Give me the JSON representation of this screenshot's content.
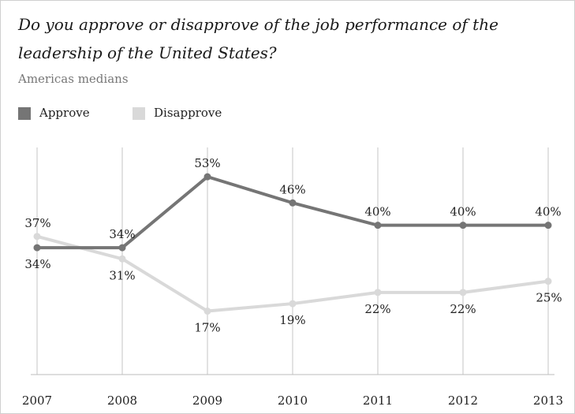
{
  "chart_data": {
    "type": "line",
    "title": "Do you approve or disapprove of the job performance of the leadership of the United States?",
    "subtitle": "Americas medians",
    "categories": [
      "2007",
      "2008",
      "2009",
      "2010",
      "2011",
      "2012",
      "2013"
    ],
    "series": [
      {
        "name": "Approve",
        "values": [
          34,
          34,
          53,
          46,
          40,
          40,
          40
        ],
        "labels": [
          "34%",
          "34%",
          "53%",
          "46%",
          "40%",
          "40%",
          "40%"
        ],
        "color": "#757575"
      },
      {
        "name": "Disapprove",
        "values": [
          37,
          31,
          17,
          19,
          22,
          22,
          25
        ],
        "labels": [
          "37%",
          "31%",
          "17%",
          "19%",
          "22%",
          "22%",
          "25%"
        ],
        "color": "#d9d9d9"
      }
    ],
    "ylim": [
      0,
      60
    ],
    "grid": "vertical",
    "legend": "top-left"
  }
}
